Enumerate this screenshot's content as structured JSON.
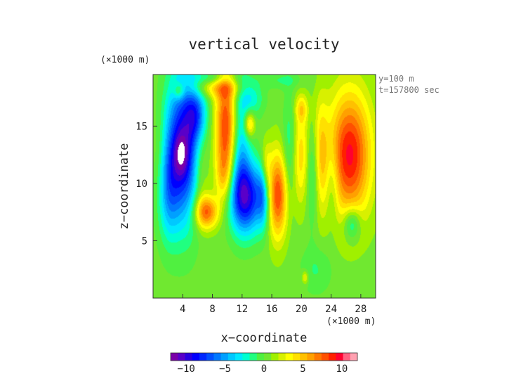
{
  "chart_data": {
    "type": "heatmap",
    "title": "vertical velocity",
    "xlabel": "x−coordinate",
    "ylabel": "z−coordinate",
    "x_unit": "(×1000 m)",
    "y_unit": "(×1000 m)",
    "info_lines": [
      "y=100 m",
      "t=157800 sec"
    ],
    "xlim": [
      0,
      30
    ],
    "ylim": [
      0,
      19.5
    ],
    "x_ticks": [
      4,
      8,
      12,
      16,
      20,
      24,
      28
    ],
    "y_ticks": [
      5,
      10,
      15
    ],
    "x_tick_labels": [
      "4",
      "8",
      "12",
      "16",
      "20",
      "24",
      "28"
    ],
    "y_tick_labels": [
      "5",
      "10",
      "15"
    ],
    "grid": false,
    "colorbar": {
      "position": "bottom",
      "range": [
        -12,
        12
      ],
      "ticks": [
        -10,
        -5,
        0,
        5,
        10
      ],
      "tick_labels": [
        "−10",
        "−5",
        "0",
        "5",
        "10"
      ],
      "colors": [
        "#7a00a8",
        "#5a00c8",
        "#2a00e0",
        "#0000ff",
        "#0028ff",
        "#0050ff",
        "#0078ff",
        "#00a0ff",
        "#00c8ff",
        "#00e8ff",
        "#00ffd0",
        "#20ff80",
        "#50f040",
        "#70e830",
        "#a0f000",
        "#d8f000",
        "#ffff00",
        "#ffe000",
        "#ffc000",
        "#ffa000",
        "#ff7800",
        "#ff5000",
        "#ff2000",
        "#ff0030",
        "#ff6080",
        "#ffa0b0"
      ]
    },
    "background_value": 0.5,
    "features": [
      {
        "x": 4.0,
        "z": 13.0,
        "sx": 1.7,
        "sz": 4.5,
        "amp": -10.0
      },
      {
        "x": 3.8,
        "z": 12.5,
        "sx": 0.7,
        "sz": 1.3,
        "amp": -3.0
      },
      {
        "x": 2.0,
        "z": 9.5,
        "sx": 1.0,
        "sz": 3.0,
        "amp": -4.0
      },
      {
        "x": 1.0,
        "z": 12.0,
        "sx": 0.8,
        "sz": 3.0,
        "amp": 1.5
      },
      {
        "x": 5.8,
        "z": 16.0,
        "sx": 1.0,
        "sz": 1.6,
        "amp": -5.0
      },
      {
        "x": 6.5,
        "z": 11.0,
        "sx": 0.8,
        "sz": 3.0,
        "amp": 2.5
      },
      {
        "x": 7.2,
        "z": 7.5,
        "sx": 1.1,
        "sz": 1.0,
        "amp": 7.0
      },
      {
        "x": 8.5,
        "z": 18.3,
        "sx": 2.5,
        "sz": 0.6,
        "amp": 3.0
      },
      {
        "x": 3.5,
        "z": 18.0,
        "sx": 0.5,
        "sz": 0.5,
        "amp": 3.0
      },
      {
        "x": 9.8,
        "z": 15.0,
        "sx": 1.0,
        "sz": 3.5,
        "amp": 8.0
      },
      {
        "x": 9.5,
        "z": 10.5,
        "sx": 0.8,
        "sz": 1.6,
        "amp": 3.0
      },
      {
        "x": 12.5,
        "z": 8.8,
        "sx": 1.6,
        "sz": 2.2,
        "amp": -10.0
      },
      {
        "x": 11.8,
        "z": 13.5,
        "sx": 0.9,
        "sz": 3.5,
        "amp": -4.0
      },
      {
        "x": 13.2,
        "z": 17.5,
        "sx": 1.2,
        "sz": 1.2,
        "amp": -3.0
      },
      {
        "x": 16.8,
        "z": 9.0,
        "sx": 0.9,
        "sz": 2.6,
        "amp": 8.0
      },
      {
        "x": 15.2,
        "z": 11.5,
        "sx": 0.5,
        "sz": 1.5,
        "amp": 3.0
      },
      {
        "x": 14.8,
        "z": 9.0,
        "sx": 0.55,
        "sz": 2.0,
        "amp": -4.0
      },
      {
        "x": 13.0,
        "z": 15.2,
        "sx": 0.5,
        "sz": 0.8,
        "amp": 5.0
      },
      {
        "x": 18.5,
        "z": 13.0,
        "sx": 0.7,
        "sz": 3.2,
        "amp": -3.0
      },
      {
        "x": 19.8,
        "z": 12.5,
        "sx": 0.9,
        "sz": 3.0,
        "amp": 4.0
      },
      {
        "x": 20.0,
        "z": 16.5,
        "sx": 0.6,
        "sz": 0.8,
        "amp": 3.0
      },
      {
        "x": 21.5,
        "z": 11.0,
        "sx": 0.6,
        "sz": 3.0,
        "amp": -3.0
      },
      {
        "x": 22.6,
        "z": 12.5,
        "sx": 0.7,
        "sz": 3.5,
        "amp": 3.5
      },
      {
        "x": 24.2,
        "z": 10.0,
        "sx": 0.6,
        "sz": 2.5,
        "amp": -2.0
      },
      {
        "x": 26.5,
        "z": 12.5,
        "sx": 2.0,
        "sz": 3.8,
        "amp": 9.0
      },
      {
        "x": 26.8,
        "z": 6.5,
        "sx": 0.8,
        "sz": 1.0,
        "amp": -4.0
      },
      {
        "x": 8.5,
        "z": 19.2,
        "sx": 2.0,
        "sz": 0.4,
        "amp": -2.0
      },
      {
        "x": 17.5,
        "z": 19.0,
        "sx": 2.0,
        "sz": 0.5,
        "amp": -1.5
      },
      {
        "x": 20.5,
        "z": 1.8,
        "sx": 0.3,
        "sz": 0.4,
        "amp": 3.0
      },
      {
        "x": 22.0,
        "z": 2.5,
        "sx": 1.5,
        "sz": 1.5,
        "amp": -1.5
      }
    ]
  }
}
